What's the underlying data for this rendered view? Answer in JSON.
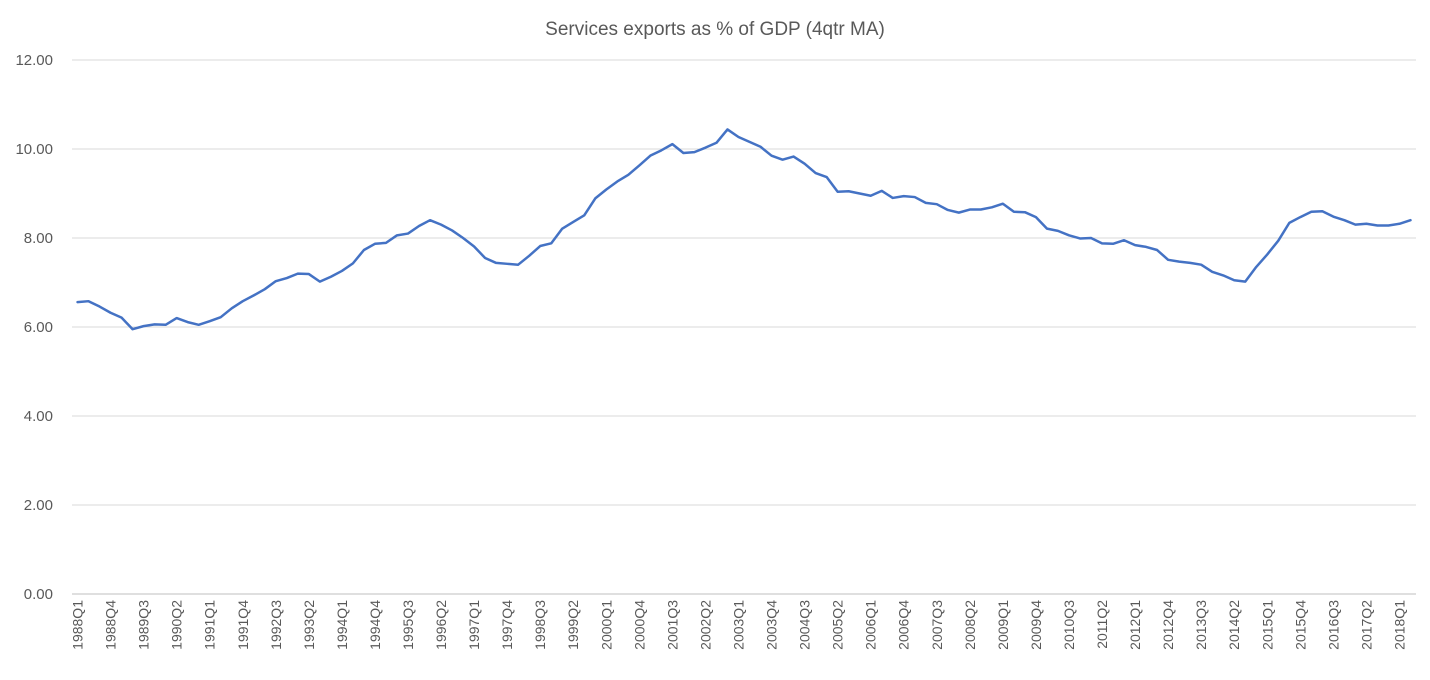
{
  "chart_data": {
    "type": "line",
    "title": "Services exports as % of GDP (4qtr MA)",
    "xlabel": "",
    "ylabel": "",
    "ylim": [
      0,
      12
    ],
    "yticks": [
      "0.00",
      "2.00",
      "4.00",
      "6.00",
      "8.00",
      "10.00",
      "12.00"
    ],
    "grid": true,
    "legend": "none",
    "tick_labels": [
      "1988Q1",
      "1988Q4",
      "1989Q3",
      "1990Q2",
      "1991Q1",
      "1991Q4",
      "1992Q3",
      "1993Q2",
      "1994Q1",
      "1994Q4",
      "1995Q3",
      "1996Q2",
      "1997Q1",
      "1997Q4",
      "1998Q3",
      "1999Q2",
      "2000Q1",
      "2000Q4",
      "2001Q3",
      "2002Q2",
      "2003Q1",
      "2003Q4",
      "2004Q3",
      "2005Q2",
      "2006Q1",
      "2006Q4",
      "2007Q3",
      "2008Q2",
      "2009Q1",
      "2009Q4",
      "2010Q3",
      "2011Q2",
      "2012Q1",
      "2012Q4",
      "2013Q3",
      "2014Q2",
      "2015Q1",
      "2015Q4",
      "2016Q3",
      "2017Q2",
      "2018Q1"
    ],
    "series": [
      {
        "name": "Services exports as % of GDP (4qtr MA)",
        "color": "#4472c4",
        "values": [
          6.56,
          6.58,
          6.46,
          6.32,
          6.21,
          5.95,
          6.02,
          6.06,
          6.05,
          6.2,
          6.11,
          6.05,
          6.13,
          6.22,
          6.42,
          6.58,
          6.71,
          6.85,
          7.03,
          7.1,
          7.2,
          7.19,
          7.02,
          7.13,
          7.26,
          7.43,
          7.73,
          7.87,
          7.89,
          8.06,
          8.1,
          8.27,
          8.4,
          8.3,
          8.17,
          8.0,
          7.81,
          7.55,
          7.44,
          7.42,
          7.4,
          7.6,
          7.82,
          7.88,
          8.21,
          8.36,
          8.51,
          8.89,
          9.09,
          9.27,
          9.42,
          9.63,
          9.85,
          9.97,
          10.11,
          9.91,
          9.93,
          10.03,
          10.14,
          10.44,
          10.27,
          10.16,
          10.05,
          9.85,
          9.76,
          9.83,
          9.67,
          9.46,
          9.37,
          9.04,
          9.05,
          9.0,
          8.95,
          9.06,
          8.9,
          8.94,
          8.92,
          8.79,
          8.76,
          8.63,
          8.57,
          8.64,
          8.64,
          8.69,
          8.77,
          8.59,
          8.58,
          8.47,
          8.21,
          8.16,
          8.06,
          7.99,
          8.0,
          7.88,
          7.87,
          7.95,
          7.84,
          7.8,
          7.73,
          7.51,
          7.47,
          7.44,
          7.4,
          7.24,
          7.16,
          7.05,
          7.02,
          7.35,
          7.63,
          7.94,
          8.34,
          8.47,
          8.59,
          8.6,
          8.48,
          8.4,
          8.3,
          8.32,
          8.28,
          8.28,
          8.32,
          8.4
        ]
      }
    ]
  }
}
